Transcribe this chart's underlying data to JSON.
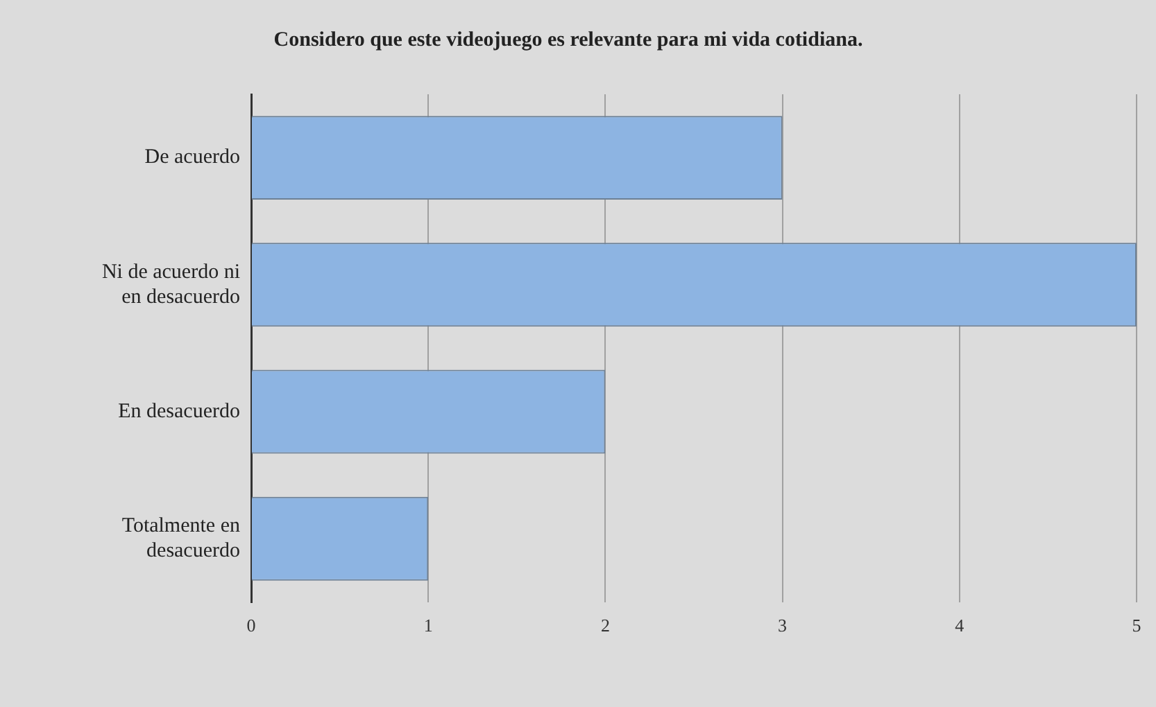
{
  "chart_data": {
    "type": "bar",
    "orientation": "horizontal",
    "title": "Considero que este videojuego es relevante para mi vida cotidiana.",
    "categories": [
      "De acuerdo",
      "Ni de acuerdo ni en desacuerdo",
      "En desacuerdo",
      "Totalmente en desacuerdo"
    ],
    "values": [
      3,
      5,
      2,
      1
    ],
    "color": "#8db4e2",
    "xlim": [
      0,
      5
    ],
    "xticks": [
      0,
      1,
      2,
      3,
      4,
      5
    ],
    "grid": "x"
  }
}
